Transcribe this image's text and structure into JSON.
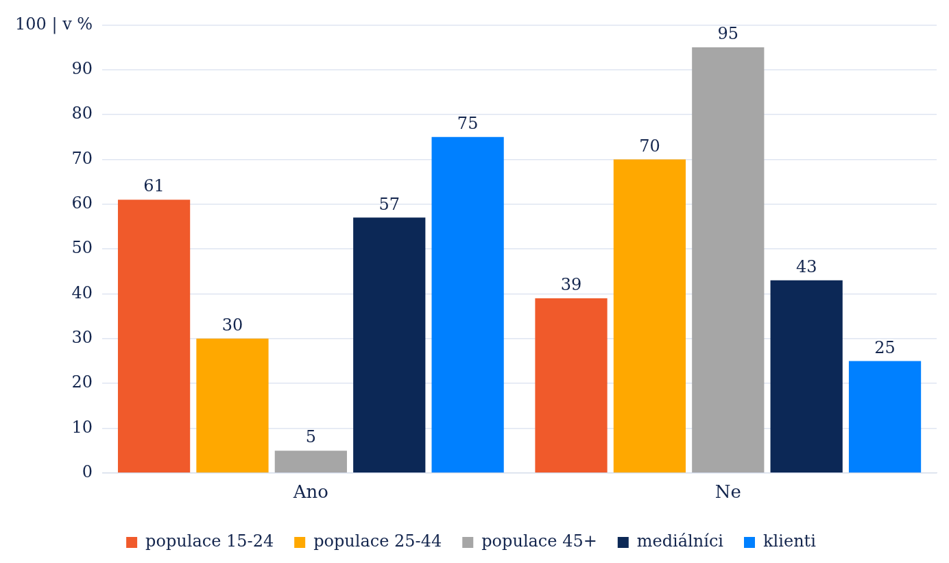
{
  "chart_data": {
    "type": "bar",
    "categories": [
      "Ano",
      "Ne"
    ],
    "series": [
      {
        "name": "populace 15-24",
        "color": "#f05a2b",
        "values": [
          61,
          39
        ]
      },
      {
        "name": "populace 25-44",
        "color": "#ffa800",
        "values": [
          30,
          70
        ]
      },
      {
        "name": "populace 45+",
        "color": "#a6a6a6",
        "values": [
          5,
          95
        ]
      },
      {
        "name": "mediálníci",
        "color": "#0c2856",
        "values": [
          57,
          43
        ]
      },
      {
        "name": "klienti",
        "color": "#0080ff",
        "values": [
          75,
          25
        ]
      }
    ],
    "ylim": [
      0,
      100
    ],
    "yticks": [
      0,
      10,
      20,
      30,
      40,
      50,
      60,
      70,
      80,
      90,
      {
        "value": 100,
        "label": "100 | v %"
      }
    ],
    "grid": "y",
    "legend": "bottom",
    "data_labels": true
  }
}
